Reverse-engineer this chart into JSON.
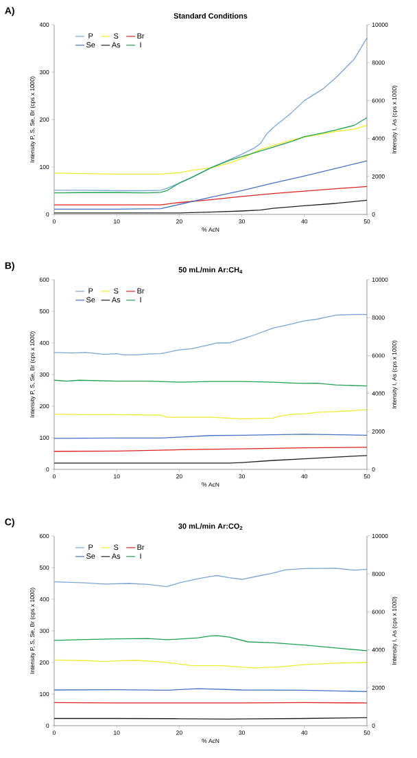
{
  "chart_data": [
    {
      "type": "line",
      "title": "Standard Conditions",
      "xlabel": "% AcN",
      "ylabel": "Intensity P, S, Se, Br (cps x 1000)",
      "y2label": "Intensity I, As (cps x 1000)",
      "annotations": [
        "A)"
      ],
      "xlim": [
        0,
        50
      ],
      "xticks": [
        0,
        10,
        20,
        30,
        40,
        50
      ],
      "ylim": [
        0,
        400
      ],
      "yticks": [
        0,
        100,
        200,
        300,
        400
      ],
      "y2lim": [
        0,
        10000
      ],
      "y2ticks": [
        0,
        2000,
        4000,
        6000,
        8000,
        10000
      ],
      "legend": "top left",
      "series": [
        {
          "name": "P",
          "color": "#7aa6d6",
          "x": [
            0,
            5,
            10,
            15,
            17,
            18,
            20,
            22,
            25,
            28,
            30,
            32,
            33,
            34,
            35,
            38,
            40,
            43,
            45,
            48,
            50
          ],
          "values": [
            51,
            51,
            50,
            50,
            51,
            55,
            66,
            78,
            98,
            115,
            127,
            140,
            150,
            170,
            183,
            215,
            240,
            265,
            288,
            328,
            372
          ]
        },
        {
          "name": "S",
          "color": "#ecec30",
          "x": [
            0,
            5,
            10,
            15,
            17,
            20,
            22,
            25,
            28,
            30,
            33,
            35,
            38,
            40,
            43,
            45,
            48,
            50
          ],
          "values": [
            87,
            86,
            85,
            85,
            85,
            88,
            93,
            98,
            108,
            118,
            137,
            145,
            157,
            163,
            170,
            175,
            180,
            188
          ]
        },
        {
          "name": "Br",
          "color": "#e02020",
          "x": [
            0,
            10,
            17,
            20,
            25,
            30,
            35,
            40,
            45,
            50
          ],
          "values": [
            20,
            20,
            20,
            25,
            31,
            38,
            44,
            49,
            54,
            59
          ]
        },
        {
          "name": "Se",
          "color": "#4472c4",
          "x": [
            0,
            10,
            17,
            20,
            25,
            30,
            35,
            40,
            45,
            50
          ],
          "values": [
            11,
            11,
            12,
            21,
            36,
            50,
            66,
            81,
            97,
            113
          ]
        },
        {
          "name": "As",
          "color": "#202020",
          "axis": "y2",
          "x": [
            0,
            10,
            20,
            25,
            30,
            33,
            35,
            40,
            45,
            50
          ],
          "values": [
            80,
            80,
            80,
            120,
            180,
            230,
            320,
            460,
            580,
            750
          ]
        },
        {
          "name": "I",
          "color": "#20a050",
          "axis": "y2",
          "x": [
            0,
            5,
            10,
            15,
            17,
            18,
            19,
            20,
            22,
            25,
            28,
            30,
            33,
            35,
            38,
            40,
            43,
            45,
            48,
            50
          ],
          "values": [
            1140,
            1150,
            1150,
            1140,
            1160,
            1250,
            1450,
            1650,
            1950,
            2450,
            2850,
            3050,
            3350,
            3550,
            3850,
            4100,
            4300,
            4450,
            4700,
            5100
          ]
        }
      ]
    },
    {
      "type": "line",
      "title": "50 mL/min Ar:CH$_{4}$",
      "xlabel": "% AcN",
      "ylabel": "Intensity P, S, Se, Br (cps x 1000)",
      "y2label": "Intensity I, As (cps x 1000)",
      "annotations": [
        "B)"
      ],
      "xlim": [
        0,
        50
      ],
      "xticks": [
        0,
        10,
        20,
        30,
        40,
        50
      ],
      "ylim": [
        0,
        600
      ],
      "yticks": [
        0,
        100,
        200,
        300,
        400,
        500,
        600
      ],
      "y2lim": [
        0,
        10000
      ],
      "y2ticks": [
        0,
        2000,
        4000,
        6000,
        8000,
        10000
      ],
      "legend": "top left",
      "series": [
        {
          "name": "P",
          "color": "#7aa6d6",
          "x": [
            0,
            3,
            5,
            8,
            10,
            11,
            13,
            15,
            17,
            18,
            20,
            22,
            25,
            26,
            28,
            30,
            32,
            35,
            38,
            40,
            42,
            45,
            48,
            50
          ],
          "values": [
            370,
            368,
            370,
            364,
            366,
            362,
            362,
            365,
            366,
            370,
            378,
            382,
            395,
            400,
            400,
            412,
            425,
            447,
            460,
            470,
            475,
            488,
            490,
            490
          ]
        },
        {
          "name": "S",
          "color": "#ecec30",
          "x": [
            0,
            5,
            10,
            15,
            17,
            18,
            20,
            25,
            30,
            35,
            36,
            38,
            40,
            42,
            45,
            48,
            50
          ],
          "values": [
            174,
            173,
            173,
            172,
            172,
            165,
            165,
            165,
            160,
            162,
            168,
            174,
            176,
            180,
            183,
            186,
            189
          ]
        },
        {
          "name": "Br",
          "color": "#e02020",
          "x": [
            0,
            10,
            20,
            30,
            40,
            50
          ],
          "values": [
            57,
            58,
            62,
            65,
            68,
            70
          ]
        },
        {
          "name": "Se",
          "color": "#4472c4",
          "x": [
            0,
            10,
            17,
            20,
            25,
            30,
            40,
            50
          ],
          "values": [
            98,
            99,
            99,
            102,
            107,
            108,
            111,
            108
          ]
        },
        {
          "name": "As",
          "color": "#202020",
          "axis": "y2",
          "x": [
            0,
            10,
            20,
            28,
            30,
            35,
            40,
            45,
            50
          ],
          "values": [
            330,
            330,
            330,
            330,
            360,
            470,
            560,
            650,
            730
          ]
        },
        {
          "name": "I",
          "color": "#20a050",
          "axis": "y2",
          "x": [
            0,
            2,
            4,
            10,
            15,
            20,
            25,
            30,
            35,
            38,
            40,
            42,
            45,
            50
          ],
          "values": [
            4700,
            4650,
            4700,
            4650,
            4650,
            4600,
            4630,
            4630,
            4600,
            4550,
            4530,
            4540,
            4450,
            4400
          ]
        }
      ]
    },
    {
      "type": "line",
      "title": "30 mL/min Ar:CO$_{2}$",
      "xlabel": "% AcN",
      "ylabel": "Intensity P, S, Se, Br (cps x 1000)",
      "y2label": "Intensity I, As (cps x 1000)",
      "annotations": [
        "C)"
      ],
      "xlim": [
        0,
        50
      ],
      "xticks": [
        0,
        10,
        20,
        30,
        40,
        50
      ],
      "ylim": [
        0,
        600
      ],
      "yticks": [
        0,
        100,
        200,
        300,
        400,
        500,
        600
      ],
      "y2lim": [
        0,
        10000
      ],
      "y2ticks": [
        0,
        2000,
        4000,
        6000,
        8000,
        10000
      ],
      "legend": "top left",
      "series": [
        {
          "name": "P",
          "color": "#7aa6d6",
          "x": [
            0,
            5,
            8,
            12,
            15,
            18,
            20,
            23,
            25,
            26,
            28,
            30,
            33,
            35,
            37,
            40,
            45,
            48,
            50
          ],
          "values": [
            455,
            452,
            448,
            450,
            447,
            440,
            452,
            465,
            472,
            475,
            468,
            463,
            475,
            483,
            493,
            497,
            498,
            492,
            495
          ]
        },
        {
          "name": "S",
          "color": "#ecec30",
          "x": [
            0,
            5,
            8,
            10,
            13,
            17,
            20,
            22,
            27,
            30,
            32,
            36,
            40,
            45,
            50
          ],
          "values": [
            208,
            206,
            203,
            205,
            207,
            202,
            195,
            190,
            190,
            185,
            183,
            186,
            193,
            198,
            200
          ]
        },
        {
          "name": "Br",
          "color": "#e02020",
          "x": [
            0,
            10,
            20,
            30,
            40,
            50
          ],
          "values": [
            73,
            72,
            72,
            72,
            73,
            72
          ]
        },
        {
          "name": "Se",
          "color": "#4472c4",
          "x": [
            0,
            10,
            18,
            23,
            30,
            40,
            50
          ],
          "values": [
            113,
            114,
            112,
            117,
            113,
            112,
            108
          ]
        },
        {
          "name": "As",
          "color": "#202020",
          "axis": "y2",
          "x": [
            0,
            10,
            20,
            28,
            30,
            40,
            50
          ],
          "values": [
            380,
            380,
            370,
            350,
            360,
            380,
            420
          ]
        },
        {
          "name": "I",
          "color": "#20a050",
          "axis": "y2",
          "x": [
            0,
            5,
            10,
            15,
            18,
            23,
            25,
            26,
            28,
            31,
            35,
            40,
            45,
            50
          ],
          "values": [
            4500,
            4540,
            4580,
            4600,
            4530,
            4630,
            4730,
            4750,
            4670,
            4420,
            4370,
            4250,
            4100,
            3950
          ]
        }
      ]
    }
  ]
}
